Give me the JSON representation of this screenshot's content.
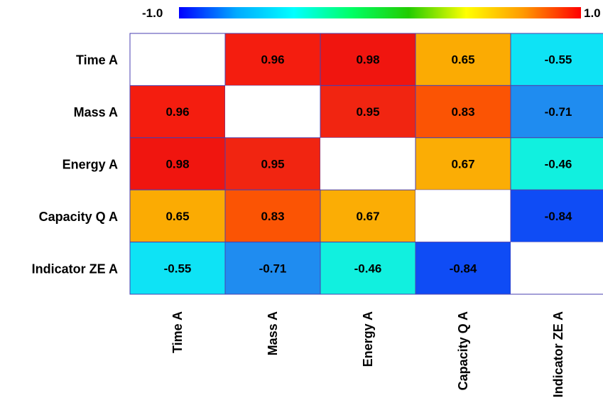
{
  "chart_data": {
    "type": "heatmap",
    "title": "",
    "xlabel": "",
    "ylabel": "",
    "row_labels": [
      "Time A",
      "Mass A",
      "Energy A",
      "Capacity Q A",
      "Indicator ZE A"
    ],
    "col_labels": [
      "Time A",
      "Mass A",
      "Energy A",
      "Capacity Q A",
      "Indicator ZE A"
    ],
    "values": [
      [
        null,
        0.96,
        0.98,
        0.65,
        -0.55
      ],
      [
        0.96,
        null,
        0.95,
        0.83,
        -0.71
      ],
      [
        0.98,
        0.95,
        null,
        0.67,
        -0.46
      ],
      [
        0.65,
        0.83,
        0.67,
        null,
        -0.84
      ],
      [
        -0.55,
        -0.71,
        -0.46,
        -0.84,
        null
      ]
    ],
    "value_labels": [
      [
        "",
        "0.96",
        "0.98",
        "0.65",
        "-0.55"
      ],
      [
        "0.96",
        "",
        "0.95",
        "0.83",
        "-0.71"
      ],
      [
        "0.98",
        "0.95",
        "",
        "0.67",
        "-0.46"
      ],
      [
        "0.65",
        "0.83",
        "0.67",
        "",
        "-0.84"
      ],
      [
        "-0.55",
        "-0.71",
        "-0.46",
        "-0.84",
        ""
      ]
    ],
    "colorbar": {
      "min": -1.0,
      "max": 1.0,
      "min_label": "-1.0",
      "max_label": "1.0",
      "placement": "top",
      "colors": [
        "#0000ff",
        "#00aaff",
        "#00ffff",
        "#00ff66",
        "#22cc00",
        "#ffff00",
        "#ff9900",
        "#ff0000"
      ]
    },
    "cell_colors": [
      [
        null,
        "#f41d0f",
        "#f0150f",
        "#fbab03",
        "#0ee3f5"
      ],
      [
        "#f41d0f",
        null,
        "#f12511",
        "#fb5404",
        "#1f8cf0"
      ],
      [
        "#f0150f",
        "#f12511",
        null,
        "#fbad05",
        "#11f0df"
      ],
      [
        "#fbab03",
        "#fb5404",
        "#fbad05",
        null,
        "#0f4cf5"
      ],
      [
        "#0ee3f5",
        "#1f8cf0",
        "#11f0df",
        "#0f4cf5",
        null
      ]
    ],
    "grid_line_color": "#4a3fb0",
    "grid": true,
    "legend": "colorbar top"
  }
}
